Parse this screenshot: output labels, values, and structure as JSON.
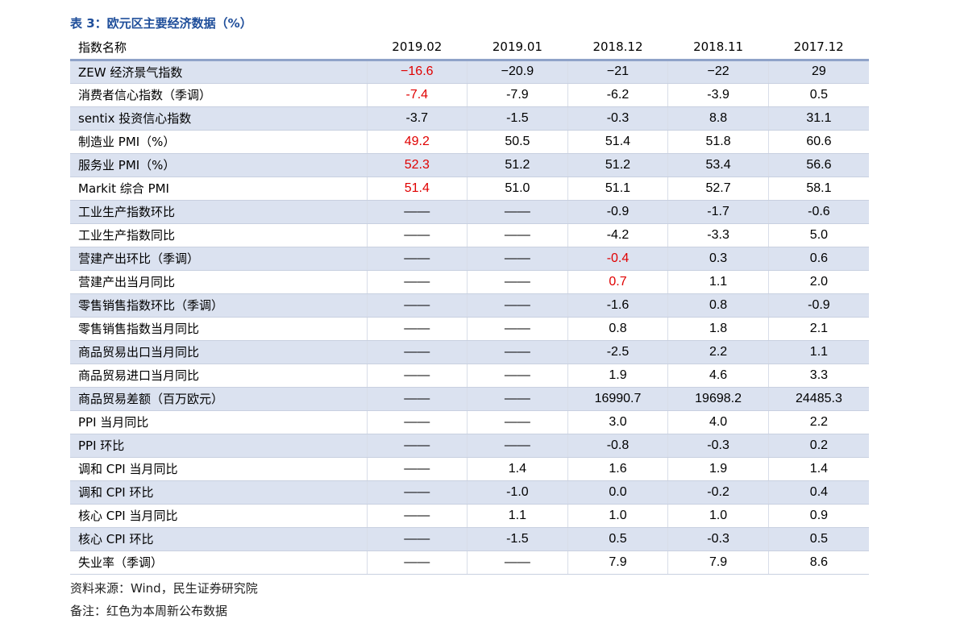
{
  "title": "表 3：欧元区主要经济数据（%）",
  "table": {
    "header": [
      "指数名称",
      "2019.02",
      "2019.01",
      "2018.12",
      "2018.11",
      "2017.12"
    ],
    "rows": [
      [
        "ZEW 经济景气指数",
        "−16.6",
        "−20.9",
        "−21",
        "−22",
        "29"
      ],
      [
        "消费者信心指数（季调）",
        "-7.4",
        "-7.9",
        "-6.2",
        "-3.9",
        "0.5"
      ],
      [
        "sentix 投资信心指数",
        "-3.7",
        "-1.5",
        "-0.3",
        "8.8",
        "31.1"
      ],
      [
        "制造业 PMI（%）",
        "49.2",
        "50.5",
        "51.4",
        "51.8",
        "60.6"
      ],
      [
        "服务业 PMI（%）",
        "52.3",
        "51.2",
        "51.2",
        "53.4",
        "56.6"
      ],
      [
        "Markit 综合 PMI",
        "51.4",
        "51.0",
        "51.1",
        "52.7",
        "58.1"
      ],
      [
        "工业生产指数环比",
        "——",
        "——",
        "-0.9",
        "-1.7",
        "-0.6"
      ],
      [
        "工业生产指数同比",
        "——",
        "——",
        "-4.2",
        "-3.3",
        "5.0"
      ],
      [
        "营建产出环比（季调）",
        "——",
        "——",
        "-0.4",
        "0.3",
        "0.6"
      ],
      [
        "营建产出当月同比",
        "——",
        "——",
        "0.7",
        "1.1",
        "2.0"
      ],
      [
        "零售销售指数环比（季调）",
        "——",
        "——",
        "-1.6",
        "0.8",
        "-0.9"
      ],
      [
        "零售销售指数当月同比",
        "——",
        "——",
        "0.8",
        "1.8",
        "2.1"
      ],
      [
        "商品贸易出口当月同比",
        "——",
        "——",
        "-2.5",
        "2.2",
        "1.1"
      ],
      [
        "商品贸易进口当月同比",
        "——",
        "——",
        "1.9",
        "4.6",
        "3.3"
      ],
      [
        "商品贸易差额（百万欧元）",
        "——",
        "——",
        "16990.7",
        "19698.2",
        "24485.3"
      ],
      [
        "PPI 当月同比",
        "——",
        "——",
        "3.0",
        "4.0",
        "2.2"
      ],
      [
        "PPI 环比",
        "——",
        "——",
        "-0.8",
        "-0.3",
        "0.2"
      ],
      [
        "调和 CPI 当月同比",
        "——",
        "1.4",
        "1.6",
        "1.9",
        "1.4"
      ],
      [
        "调和 CPI 环比",
        "——",
        "-1.0",
        "0.0",
        "-0.2",
        "0.4"
      ],
      [
        "核心 CPI 当月同比",
        "——",
        "1.1",
        "1.0",
        "1.0",
        "0.9"
      ],
      [
        "核心 CPI 环比",
        "——",
        "-1.5",
        "0.5",
        "-0.3",
        "0.5"
      ],
      [
        "失业率（季调）",
        "——",
        "——",
        "7.9",
        "7.9",
        "8.6"
      ]
    ]
  },
  "source": "资料来源：Wind，民生证券研究院",
  "note": "备注：红色为本周新公布数据"
}
